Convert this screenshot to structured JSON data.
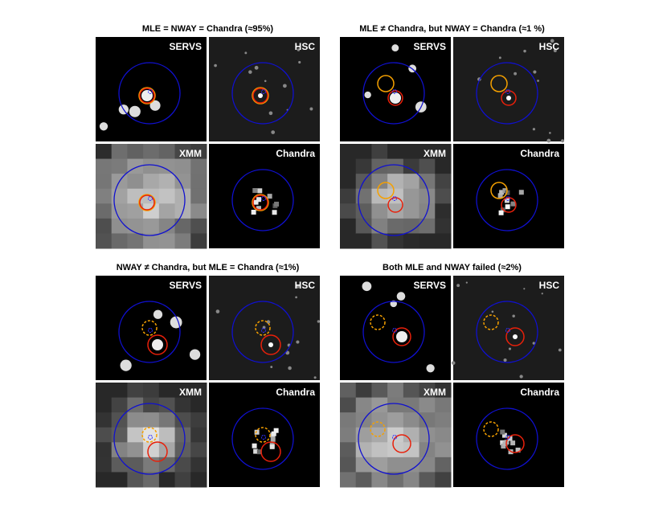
{
  "panels": [
    {
      "title": "MLE = NWAY = Chandra (≈95%)",
      "images": [
        {
          "label": "SERVS"
        },
        {
          "label": "HSC"
        },
        {
          "label": "XMM"
        },
        {
          "label": "Chandra"
        }
      ]
    },
    {
      "title": "MLE ≠ Chandra, but NWAY = Chandra (≈1 %)",
      "images": [
        {
          "label": "SERVS"
        },
        {
          "label": "HSC"
        },
        {
          "label": "XMM"
        },
        {
          "label": "Chandra"
        }
      ]
    },
    {
      "title": "NWAY ≠ Chandra, but MLE = Chandra (≈1%)",
      "images": [
        {
          "label": "SERVS"
        },
        {
          "label": "HSC"
        },
        {
          "label": "XMM"
        },
        {
          "label": "Chandra"
        }
      ]
    },
    {
      "title": "Both MLE and NWAY failed (≈2%)",
      "images": [
        {
          "label": "SERVS"
        },
        {
          "label": "HSC"
        },
        {
          "label": "XMM"
        },
        {
          "label": "Chandra"
        }
      ]
    }
  ]
}
